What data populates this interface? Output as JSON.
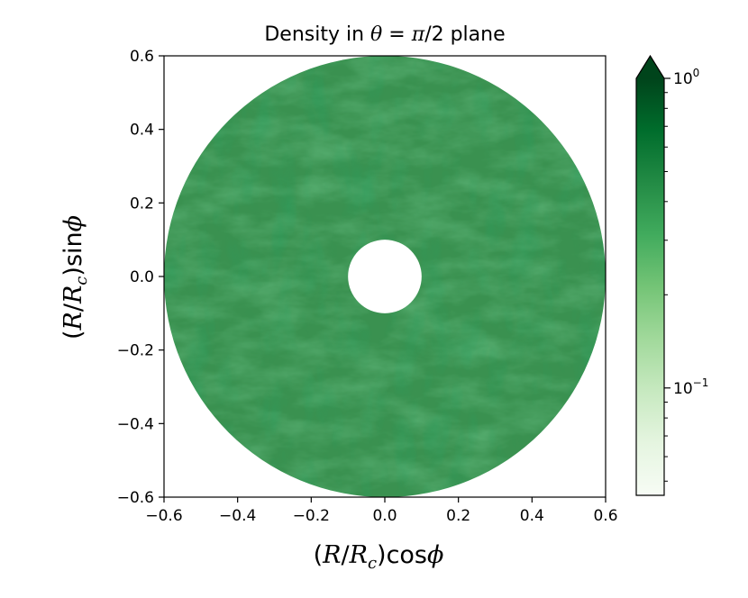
{
  "chart_data": {
    "type": "heatmap",
    "subtype": "polar-annulus",
    "title": "Density in θ = π/2 plane",
    "xlabel": "(R/Rc)cosϕ",
    "ylabel": "(R/Rc)sinϕ",
    "xlim": [
      -0.6,
      0.6
    ],
    "ylim": [
      -0.6,
      0.6
    ],
    "xticks": [
      -0.6,
      -0.4,
      -0.2,
      0.0,
      0.2,
      0.4,
      0.6
    ],
    "yticks": [
      -0.6,
      -0.4,
      -0.2,
      0.0,
      0.2,
      0.4,
      0.6
    ],
    "xtick_labels": [
      "−0.6",
      "−0.4",
      "−0.2",
      "0.0",
      "0.2",
      "0.4",
      "0.6"
    ],
    "ytick_labels": [
      "−0.6",
      "−0.4",
      "−0.2",
      "0.0",
      "0.2",
      "0.4",
      "0.6"
    ],
    "inner_radius": 0.1,
    "outer_radius": 0.6,
    "colormap": "Greens",
    "colorbar": {
      "scale": "log",
      "min": 0.045,
      "max": 1.0,
      "extend": "max",
      "tick_labels": [
        {
          "base": "10",
          "exp": "0",
          "value": 1.0
        },
        {
          "base": "10",
          "exp": "−1",
          "value": 0.1
        }
      ]
    },
    "typical_density": 0.45
  },
  "colors": {
    "cmap_light": "#f7fcf5",
    "cmap_mid": "#74c476",
    "cmap_dark": "#00441b",
    "disk_base": "#3a9150"
  }
}
